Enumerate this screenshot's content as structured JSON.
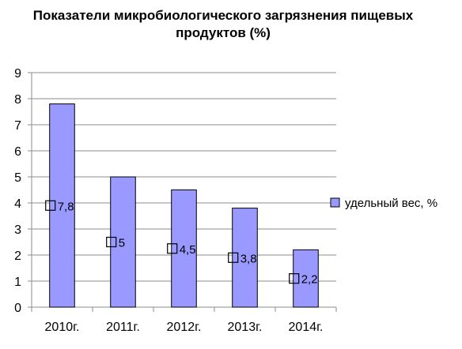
{
  "chart_data": {
    "type": "bar",
    "title": "Показатели микробиологического загрязнения пищевых продуктов (%)",
    "title_lines": [
      "Показатели микробиологического загрязнения пищевых",
      "продуктов (%)"
    ],
    "categories": [
      "2010г.",
      "2011г.",
      "2012г.",
      "2013г.",
      "2014г."
    ],
    "series": [
      {
        "name": "удельный вес, %",
        "values": [
          7.8,
          5,
          4.5,
          3.8,
          2.2
        ],
        "data_labels": [
          "7,8",
          "5",
          "4,5",
          "3,8",
          "2,2"
        ],
        "color": "#9999ff"
      }
    ],
    "xlabel": "",
    "ylabel": "",
    "ylim": [
      0,
      9
    ],
    "yticks": [
      0,
      1,
      2,
      3,
      4,
      5,
      6,
      7,
      8,
      9
    ],
    "grid": true,
    "legend_position": "right",
    "marker": "square"
  }
}
